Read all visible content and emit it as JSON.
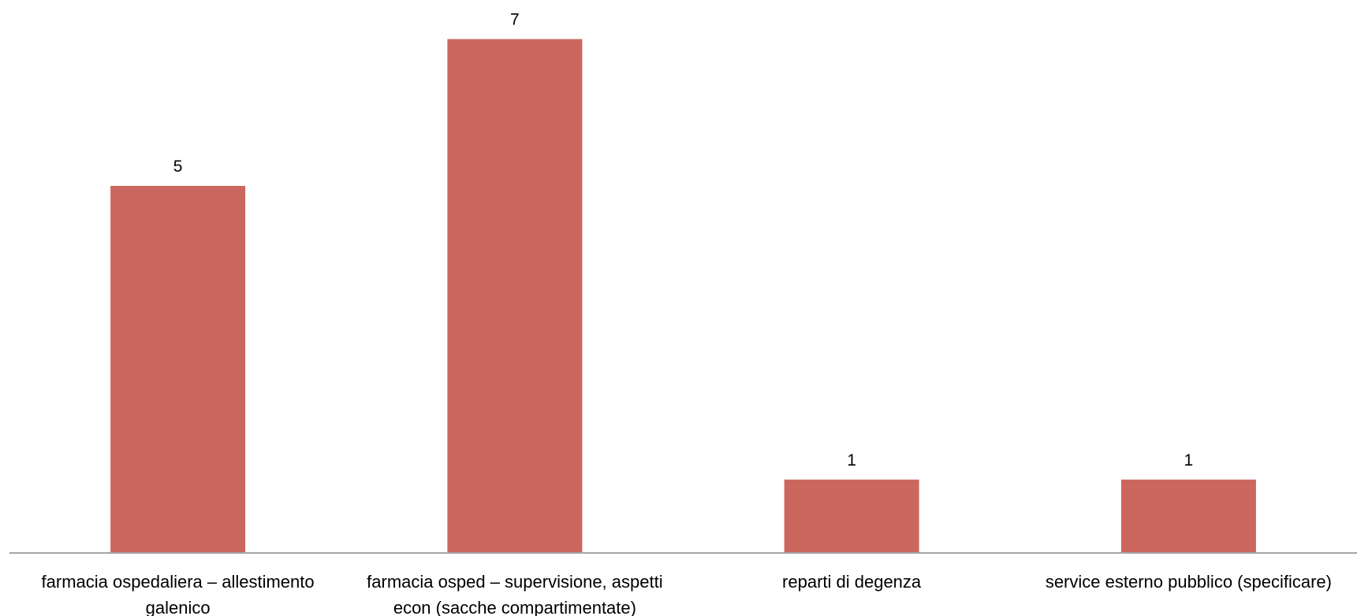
{
  "chart_data": {
    "type": "bar",
    "categories": [
      [
        "farmacia ospedaliera – allestimento",
        "galenico"
      ],
      [
        "farmacia osped – supervisione, aspetti",
        "econ (sacche compartimentate)"
      ],
      [
        "reparti di degenza"
      ],
      [
        "service esterno pubblico (specificare)"
      ]
    ],
    "values": [
      5,
      7,
      1,
      1
    ],
    "data_labels": [
      "5",
      "7",
      "1",
      "1"
    ],
    "title": "",
    "xlabel": "",
    "ylabel": "",
    "ylim": [
      0,
      7.5
    ],
    "grid": false,
    "legend": "none",
    "bar_color": "#cc6760",
    "axis_color": "#a6a6a6"
  }
}
